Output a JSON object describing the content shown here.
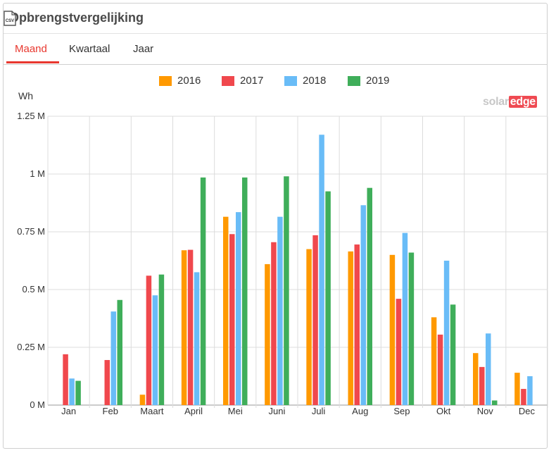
{
  "header": {
    "title": "Opbrengstvergelijking",
    "csv_icon": "csv-file-icon"
  },
  "tabs": [
    {
      "label": "Maand",
      "active": true
    },
    {
      "label": "Kwartaal",
      "active": false
    },
    {
      "label": "Jaar",
      "active": false
    }
  ],
  "brand": {
    "part1": "solar",
    "part2": "edge"
  },
  "chart_data": {
    "type": "bar",
    "ylabel": "Wh",
    "ylim": [
      0,
      1.25
    ],
    "yticks": [
      "0 M",
      "0.25 M",
      "0.5 M",
      "0.75 M",
      "1 M",
      "1.25 M"
    ],
    "ytick_values": [
      0,
      0.25,
      0.5,
      0.75,
      1,
      1.25
    ],
    "categories": [
      "Jan",
      "Feb",
      "Maart",
      "April",
      "Mei",
      "Juni",
      "Juli",
      "Aug",
      "Sep",
      "Okt",
      "Nov",
      "Dec"
    ],
    "legend_position": "top-center",
    "grid": true,
    "series": [
      {
        "name": "2016",
        "color": "#ff9900",
        "values": [
          0,
          0,
          0.045,
          0.67,
          0.815,
          0.61,
          0.675,
          0.665,
          0.65,
          0.38,
          0.225,
          0.14
        ]
      },
      {
        "name": "2017",
        "color": "#f0484d",
        "values": [
          0.22,
          0.195,
          0.56,
          0.672,
          0.74,
          0.705,
          0.735,
          0.695,
          0.46,
          0.305,
          0.165,
          0.07
        ]
      },
      {
        "name": "2018",
        "color": "#69bcf7",
        "values": [
          0.115,
          0.405,
          0.475,
          0.575,
          0.835,
          0.815,
          1.17,
          0.865,
          0.745,
          0.625,
          0.31,
          0.125
        ]
      },
      {
        "name": "2019",
        "color": "#3fae5a",
        "values": [
          0.105,
          0.455,
          0.565,
          0.985,
          0.985,
          0.99,
          0.925,
          0.94,
          0.66,
          0.435,
          0.02,
          null
        ]
      }
    ]
  }
}
